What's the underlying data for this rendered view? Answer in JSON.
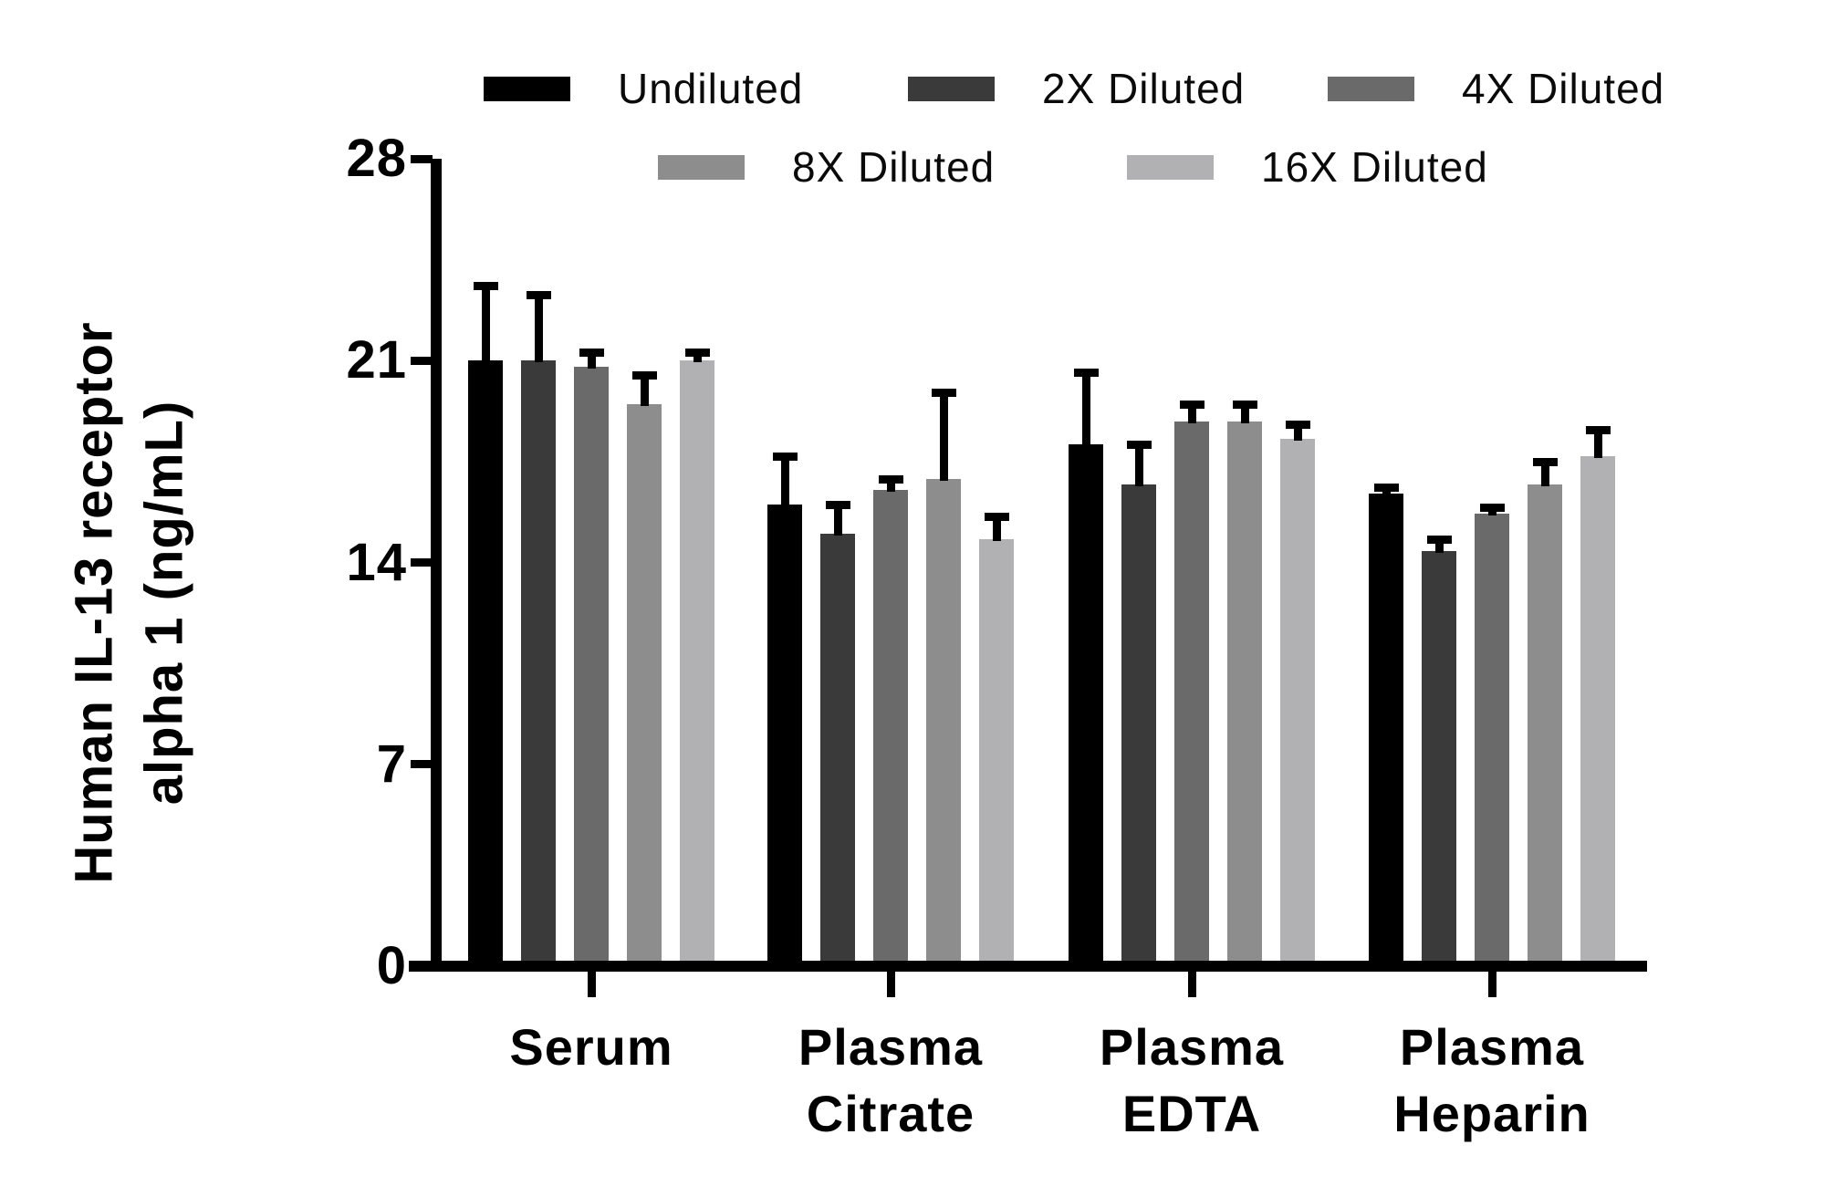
{
  "chart_data": {
    "type": "bar",
    "title": "",
    "ylabel_lines": [
      "Human IL-13 receptor",
      "alpha 1 (ng/mL)"
    ],
    "xlabel": "",
    "ylim": [
      0,
      28
    ],
    "yticks": [
      0,
      7,
      14,
      21,
      28
    ],
    "grid": false,
    "legend_position": "top",
    "legend_rows": [
      [
        0,
        1,
        2
      ],
      [
        3,
        4
      ]
    ],
    "categories": [
      "Serum",
      "Plasma Citrate",
      "Plasma EDTA",
      "Plasma Heparin"
    ],
    "category_label_lines": [
      [
        "Serum"
      ],
      [
        "Plasma",
        "Citrate"
      ],
      [
        "Plasma",
        "EDTA"
      ],
      [
        "Plasma",
        "Heparin"
      ]
    ],
    "series": [
      {
        "name": "Undiluted",
        "color": "#000000",
        "values": [
          21.0,
          16.0,
          18.1,
          16.4
        ],
        "errors": [
          2.6,
          1.7,
          2.5,
          0.2
        ]
      },
      {
        "name": "2X Diluted",
        "color": "#3a3a3a",
        "values": [
          21.0,
          15.0,
          16.7,
          14.4
        ],
        "errors": [
          2.3,
          1.0,
          1.4,
          0.4
        ]
      },
      {
        "name": "4X Diluted",
        "color": "#6a6a6a",
        "values": [
          20.8,
          16.5,
          18.9,
          15.7
        ],
        "errors": [
          0.5,
          0.4,
          0.6,
          0.2
        ]
      },
      {
        "name": "8X Diluted",
        "color": "#8d8d8d",
        "values": [
          19.5,
          16.9,
          18.9,
          16.7
        ],
        "errors": [
          1.0,
          3.0,
          0.6,
          0.8
        ]
      },
      {
        "name": "16X Diluted",
        "color": "#b1b1b3",
        "values": [
          21.0,
          14.8,
          18.3,
          17.7
        ],
        "errors": [
          0.3,
          0.8,
          0.5,
          0.9
        ]
      }
    ]
  }
}
